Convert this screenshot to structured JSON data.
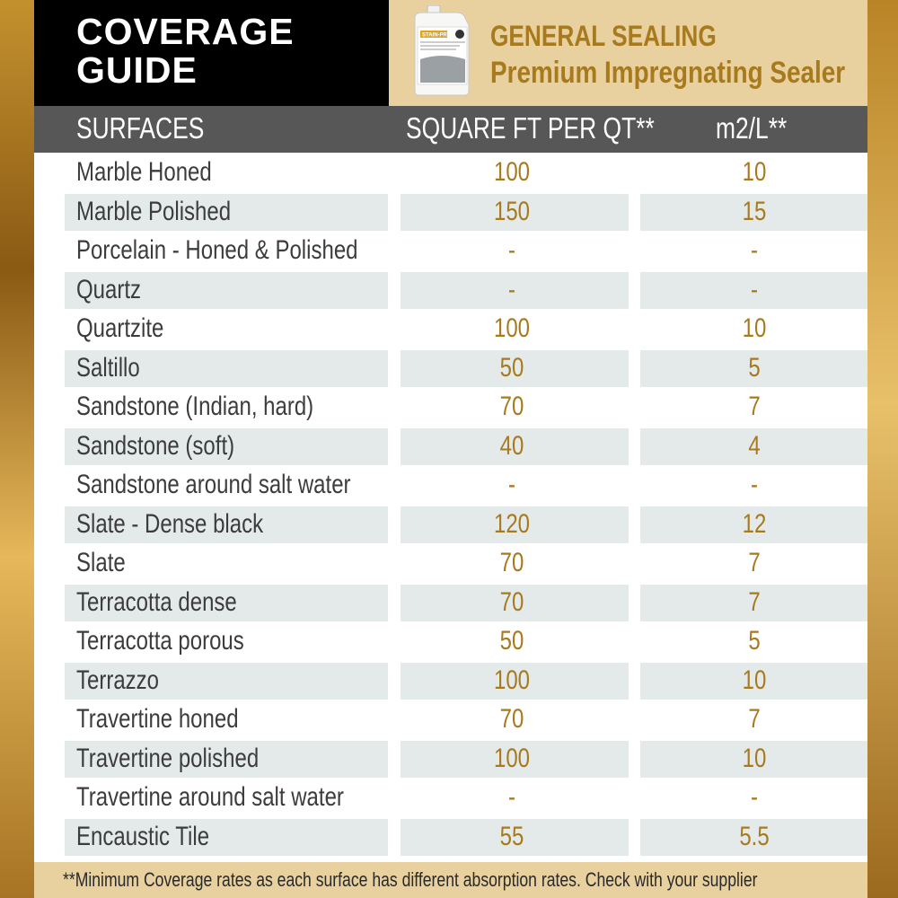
{
  "header": {
    "title_line1": "COVERAGE",
    "title_line2": "GUIDE",
    "product_line1": "GENERAL SEALING",
    "product_line2": "Premium Impregnating Sealer",
    "jug_brand": "STAIN-PROOF"
  },
  "columns": {
    "surfaces": "SURFACES",
    "sqft": "SQUARE FT PER QT**",
    "m2": "m2/L**"
  },
  "rows": [
    {
      "surface": "Marble Honed",
      "sqft": "100",
      "m2": "10"
    },
    {
      "surface": "Marble Polished",
      "sqft": "150",
      "m2": "15"
    },
    {
      "surface": "Porcelain - Honed & Polished",
      "sqft": "-",
      "m2": "-"
    },
    {
      "surface": "Quartz",
      "sqft": "-",
      "m2": "-"
    },
    {
      "surface": "Quartzite",
      "sqft": "100",
      "m2": "10"
    },
    {
      "surface": "Saltillo",
      "sqft": "50",
      "m2": "5"
    },
    {
      "surface": "Sandstone (Indian, hard)",
      "sqft": "70",
      "m2": "7"
    },
    {
      "surface": "Sandstone (soft)",
      "sqft": "40",
      "m2": "4"
    },
    {
      "surface": "Sandstone around salt water",
      "sqft": "-",
      "m2": "-"
    },
    {
      "surface": "Slate - Dense black",
      "sqft": "120",
      "m2": "12"
    },
    {
      "surface": "Slate",
      "sqft": "70",
      "m2": "7"
    },
    {
      "surface": "Terracotta dense",
      "sqft": "70",
      "m2": "7"
    },
    {
      "surface": "Terracotta porous",
      "sqft": "50",
      "m2": "5"
    },
    {
      "surface": "Terrazzo",
      "sqft": "100",
      "m2": "10"
    },
    {
      "surface": "Travertine honed",
      "sqft": "70",
      "m2": "7"
    },
    {
      "surface": "Travertine polished",
      "sqft": "100",
      "m2": "10"
    },
    {
      "surface": "Travertine around salt water",
      "sqft": "-",
      "m2": "-"
    },
    {
      "surface": "Encaustic Tile",
      "sqft": "55",
      "m2": "5.5"
    }
  ],
  "footer": {
    "note": "**Minimum Coverage rates as each surface has different absorption rates. Check with your supplier"
  },
  "colors": {
    "gold_text": "#a87a1e",
    "header_bar": "#575757",
    "tan": "#e8d19e",
    "row_shade": "#e4e9ea"
  }
}
